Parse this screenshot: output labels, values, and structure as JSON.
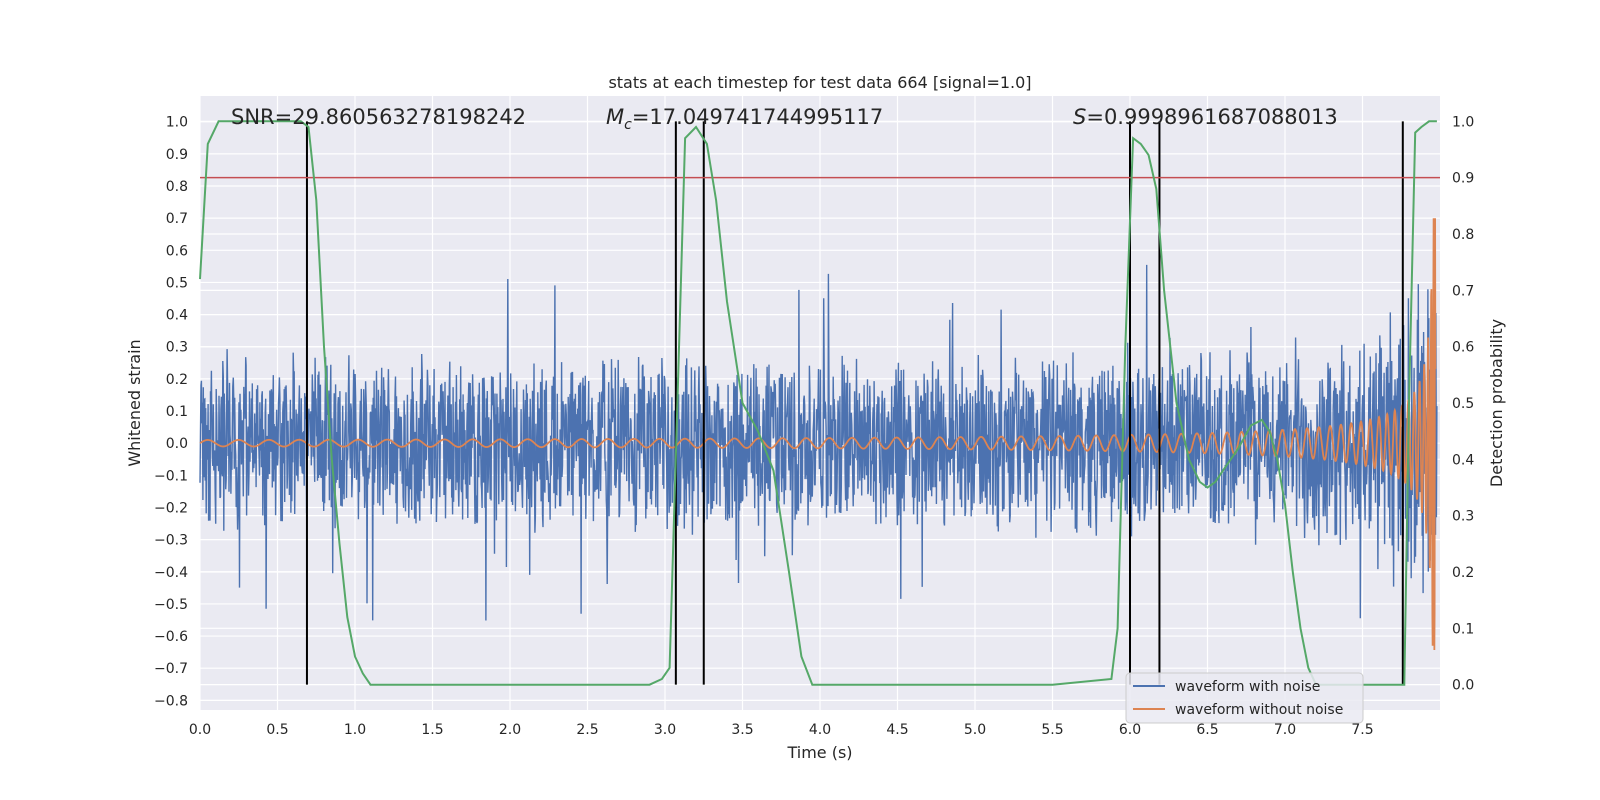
{
  "chart_data": {
    "type": "line",
    "title": "stats at each timestep for test data 664 [signal=1.0]",
    "xlabel": "Time (s)",
    "ylabel": "Whitened strain",
    "y2label": "Detection probability",
    "xlim": [
      0.0,
      8.0
    ],
    "ylim": [
      -0.83,
      1.08
    ],
    "y2lim": [
      -0.045,
      1.045
    ],
    "xticks": [
      "0.0",
      "0.5",
      "1.0",
      "1.5",
      "2.0",
      "2.5",
      "3.0",
      "3.5",
      "4.0",
      "4.5",
      "5.0",
      "5.5",
      "6.0",
      "6.5",
      "7.0",
      "7.5"
    ],
    "yticks": [
      "1.0",
      "0.9",
      "0.8",
      "0.7",
      "0.6",
      "0.5",
      "0.4",
      "0.3",
      "0.2",
      "0.1",
      "0.0",
      "−0.1",
      "−0.2",
      "−0.3",
      "−0.4",
      "−0.5",
      "−0.6",
      "−0.7",
      "−0.8"
    ],
    "y2ticks": [
      "1.0",
      "0.9",
      "0.8",
      "0.7",
      "0.6",
      "0.5",
      "0.4",
      "0.3",
      "0.2",
      "0.1",
      "0.0"
    ],
    "annotations": {
      "snr": "SNR=29.860563278198242",
      "mc_symbol": "M",
      "mc_sub": "c",
      "mc_value": "=17.049741744995117",
      "s_symbol": "S",
      "s_value": "=0.9998961687088013"
    },
    "threshold_probability": 0.9,
    "detection_markers_s": [
      0.69,
      3.07,
      3.25,
      6.0,
      6.19,
      7.76
    ],
    "legend": {
      "position": "lower-right",
      "entries": [
        "waveform with noise",
        "waveform without noise"
      ]
    },
    "series": [
      {
        "name": "waveform with noise",
        "description": "noisy whitened strain, roughly ±0.3 with spikes to ~0.55 and ~-0.6",
        "amplitude_typical": 0.3,
        "peak_max": 0.56,
        "peak_min": -0.65
      },
      {
        "name": "waveform without noise",
        "description": "clean chirp signal with amplitude growing toward merger near t=7.95 s",
        "start_amplitude": 0.01,
        "end_amplitude": 0.7
      },
      {
        "name": "detection probability",
        "axis": "right",
        "x": [
          0.0,
          0.05,
          0.12,
          0.2,
          0.3,
          0.45,
          0.6,
          0.65,
          0.7,
          0.75,
          0.8,
          0.85,
          0.9,
          0.95,
          1.0,
          1.05,
          1.1,
          1.5,
          2.0,
          2.5,
          2.9,
          2.98,
          3.03,
          3.08,
          3.13,
          3.2,
          3.27,
          3.33,
          3.4,
          3.5,
          3.6,
          3.7,
          3.8,
          3.88,
          3.95,
          4.1,
          5.0,
          5.5,
          5.88,
          5.92,
          5.97,
          6.02,
          6.07,
          6.12,
          6.17,
          6.22,
          6.3,
          6.38,
          6.45,
          6.5,
          6.55,
          6.6,
          6.7,
          6.78,
          6.85,
          6.9,
          6.95,
          7.0,
          7.05,
          7.1,
          7.15,
          7.2,
          7.5,
          7.7,
          7.73,
          7.77,
          7.8,
          7.84,
          7.88,
          7.93,
          7.98
        ],
        "y": [
          0.72,
          0.96,
          1.0,
          1.0,
          1.0,
          1.0,
          1.0,
          1.0,
          0.99,
          0.86,
          0.6,
          0.4,
          0.25,
          0.12,
          0.05,
          0.02,
          0.0,
          0.0,
          0.0,
          0.0,
          0.0,
          0.01,
          0.03,
          0.5,
          0.97,
          0.99,
          0.96,
          0.86,
          0.68,
          0.5,
          0.45,
          0.38,
          0.2,
          0.05,
          0.0,
          0.0,
          0.0,
          0.0,
          0.01,
          0.1,
          0.6,
          0.97,
          0.96,
          0.94,
          0.88,
          0.7,
          0.5,
          0.4,
          0.36,
          0.35,
          0.36,
          0.38,
          0.42,
          0.46,
          0.47,
          0.45,
          0.4,
          0.32,
          0.2,
          0.1,
          0.03,
          0.0,
          0.0,
          0.0,
          0.0,
          0.0,
          0.5,
          0.98,
          0.99,
          1.0,
          1.0
        ]
      }
    ],
    "colors": {
      "noise": "#4c72b0",
      "clean": "#dd8452",
      "probability": "#55a868",
      "threshold": "#c44e52",
      "marker": "#000000",
      "plot_bg": "#eaeaf2",
      "grid": "#ffffff"
    }
  }
}
